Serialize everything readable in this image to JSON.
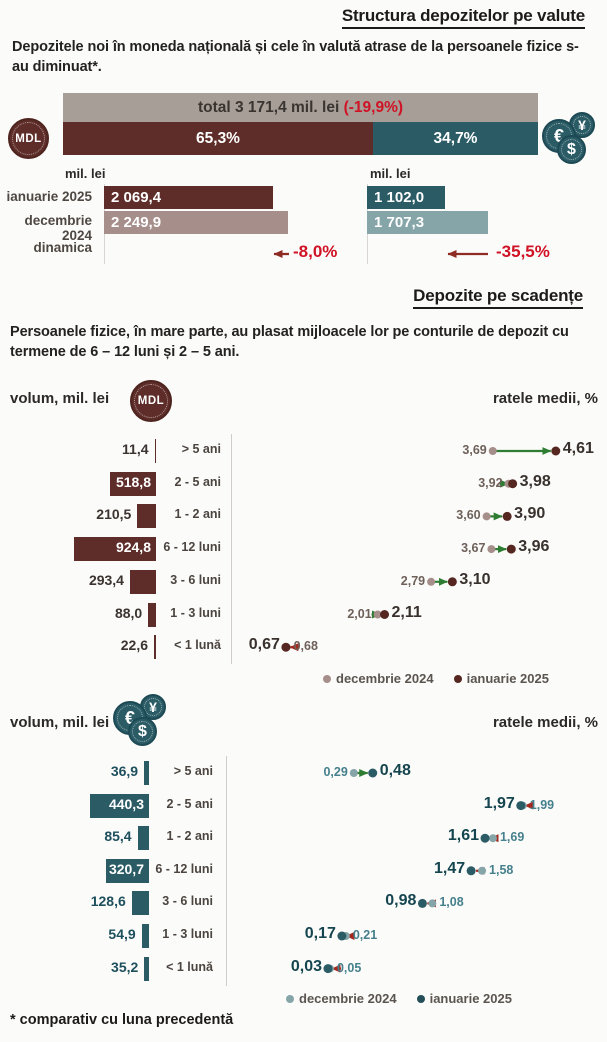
{
  "page": {
    "section1": {
      "title": "Structura depozitelor pe valute",
      "intro": "Depozitele noi în moneda națională și cele în valută atrase de la persoanele fizice s-au diminuat*.",
      "unit": "mil. lei",
      "mdl_badge": "MDL",
      "row_labels": [
        "ianuarie 2025",
        "decembrie 2024",
        "dinamica"
      ]
    },
    "section2": {
      "title": "Depozite pe scadențe",
      "intro": "Persoanele fizice, în mare parte, au plasat mijloacele lor pe conturile de depozit cu termene de 6 – 12 luni și 2 – 5 ani.",
      "volume_header": "volum, mil. lei",
      "rates_header": "ratele medii, %",
      "legend": [
        "decembrie 2024",
        "ianuarie 2025"
      ]
    },
    "icons": {
      "euro": "€",
      "yen": "¥",
      "dollar": "$"
    },
    "footnote": "* comparativ cu luna precedentă"
  },
  "colors": {
    "mdl_dark": "#5e2d29",
    "mdl_light": "#a68e8a",
    "fx_dark": "#2b5c66",
    "fx_light": "#85a5a9",
    "total_gray": "#a79e97",
    "negative_red": "#d01225",
    "arrow_red_dark": "#8e2b22",
    "decrease_arrow_red": "#a5281e",
    "increase_green": "#2e7d32"
  },
  "chart_data": [
    {
      "id": "new-deposits-by-currency",
      "type": "bar",
      "title": "Structura depozitelor pe valute",
      "unit": "mil. lei",
      "total_value": 3171.4,
      "total_change_pct": -19.9,
      "total_label": "total 3 171,4 mil. lei",
      "total_change_label": "(-19,9%)",
      "shares_pct": {
        "mdl": 65.3,
        "fx": 34.7
      },
      "share_labels": {
        "mdl": "65,3%",
        "fx": "34,7%"
      },
      "categories": [
        "ianuarie 2025",
        "decembrie 2024",
        "dinamica"
      ],
      "mdl": {
        "ianuarie_2025": 2069.4,
        "decembrie_2024": 2249.9,
        "dynamics_pct": -8.0,
        "labels": {
          "ianuarie_2025": "2 069,4",
          "decembrie_2024": "2 249,9",
          "dynamics": "-8,0%"
        }
      },
      "fx": {
        "ianuarie_2025": 1102.0,
        "decembrie_2024": 1707.3,
        "dynamics_pct": -35.5,
        "labels": {
          "ianuarie_2025": "1 102,0",
          "decembrie_2024": "1 707,3",
          "dynamics": "-35,5%"
        }
      }
    },
    {
      "id": "mdl-deposits-by-maturity",
      "type": "bar+dumbbell",
      "currency": "MDL",
      "volume_unit": "volum, mil. lei",
      "rates_unit": "ratele medii, %",
      "categories": [
        "> 5 ani",
        "2 - 5 ani",
        "1 - 2 ani",
        "6 - 12 luni",
        "3 - 6 luni",
        "1 - 3 luni",
        "< 1 lună"
      ],
      "volumes": [
        11.4,
        518.8,
        210.5,
        924.8,
        293.4,
        88.0,
        22.6
      ],
      "volume_labels": [
        "11,4",
        "518,8",
        "210,5",
        "924,8",
        "293,4",
        "88,0",
        "22,6"
      ],
      "rates_decembrie_2024": [
        3.69,
        3.92,
        3.6,
        3.67,
        2.79,
        2.01,
        0.68
      ],
      "rates_ianuarie_2025": [
        4.61,
        3.98,
        3.9,
        3.96,
        3.1,
        2.11,
        0.67
      ],
      "rate_labels_decembrie_2024": [
        "3,69",
        "3,92",
        "3,60",
        "3,67",
        "2,79",
        "2,01",
        "0,68"
      ],
      "rate_labels_ianuarie_2025": [
        "4,61",
        "3,98",
        "3,90",
        "3,96",
        "3,10",
        "2,11",
        "0,67"
      ],
      "legend": [
        "decembrie 2024",
        "ianuarie 2025"
      ]
    },
    {
      "id": "fx-deposits-by-maturity",
      "type": "bar+dumbbell",
      "currency": "valută",
      "volume_unit": "volum, mil. lei",
      "rates_unit": "ratele medii, %",
      "categories": [
        "> 5 ani",
        "2 - 5 ani",
        "1 - 2 ani",
        "6 - 12 luni",
        "3 - 6 luni",
        "1 - 3 luni",
        "< 1 lună"
      ],
      "volumes": [
        36.9,
        440.3,
        85.4,
        320.7,
        128.6,
        54.9,
        35.2
      ],
      "volume_labels": [
        "36,9",
        "440,3",
        "85,4",
        "320,7",
        "128,6",
        "54,9",
        "35,2"
      ],
      "rates_decembrie_2024": [
        0.29,
        1.99,
        1.69,
        1.58,
        1.08,
        0.21,
        0.05
      ],
      "rates_ianuarie_2025": [
        0.48,
        1.97,
        1.61,
        1.47,
        0.98,
        0.17,
        0.03
      ],
      "rate_labels_decembrie_2024": [
        "0,29",
        "1,99",
        "1,69",
        "1,58",
        "1,08",
        "0,21",
        "0,05"
      ],
      "rate_labels_ianuarie_2025": [
        "0,48",
        "1,97",
        "1,61",
        "1,47",
        "0,98",
        "0,17",
        "0,03"
      ],
      "legend": [
        "decembrie 2024",
        "ianuarie 2025"
      ]
    }
  ]
}
